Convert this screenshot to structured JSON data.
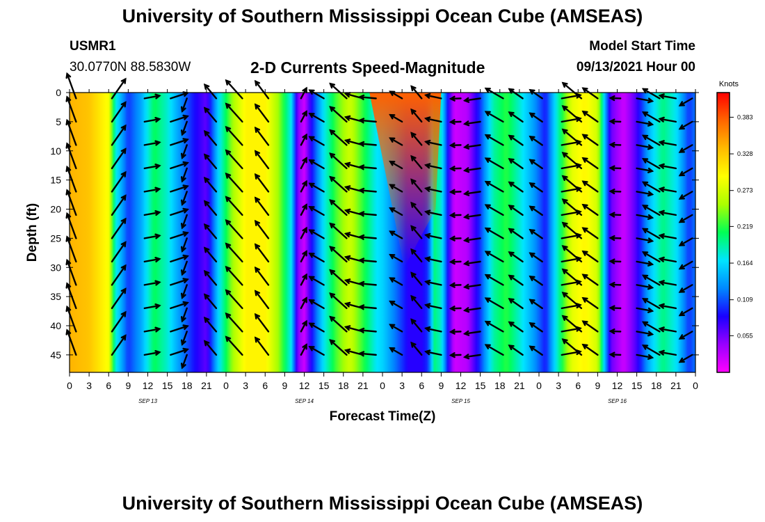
{
  "page": {
    "title_top": "University of Southern Mississippi Ocean Cube (AMSEAS)",
    "title_bottom": "University of Southern Mississippi Ocean Cube (AMSEAS)"
  },
  "header": {
    "station_id": "USMR1",
    "coordinates": "30.0770N  88.5830W",
    "subtitle": "2-D Currents Speed-Magnitude",
    "start_label": "Model Start Time",
    "start_value": "09/13/2021 Hour 00"
  },
  "chart_data": {
    "type": "heatmap",
    "title": "2-D Currents Speed-Magnitude",
    "xlabel": "Forecast Time(Z)",
    "ylabel": "Depth (ft)",
    "x_range_hours": [
      0,
      96
    ],
    "y_range_ft": [
      0,
      48
    ],
    "y_ticks": [
      0,
      5,
      10,
      15,
      20,
      25,
      30,
      35,
      40,
      45
    ],
    "x_tick_hours": [
      0,
      3,
      6,
      9,
      12,
      15,
      18,
      21,
      24,
      27,
      30,
      33,
      36,
      39,
      42,
      45,
      48,
      51,
      54,
      57,
      60,
      63,
      66,
      69,
      72,
      75,
      78,
      81,
      84,
      87,
      90,
      93,
      96
    ],
    "x_tick_labels": [
      "0",
      "3",
      "6",
      "9",
      "12",
      "15",
      "18",
      "21",
      "0",
      "3",
      "6",
      "9",
      "12",
      "15",
      "18",
      "21",
      "0",
      "3",
      "6",
      "9",
      "12",
      "15",
      "18",
      "21",
      "0",
      "3",
      "6",
      "9",
      "12",
      "15",
      "18",
      "21",
      "0"
    ],
    "date_labels": [
      {
        "hour": 12,
        "text": "SEP 13"
      },
      {
        "hour": 36,
        "text": "SEP 14"
      },
      {
        "hour": 60,
        "text": "SEP 15"
      },
      {
        "hour": 84,
        "text": "SEP 16"
      }
    ],
    "colorbar": {
      "unit": "Knots",
      "min": 0.0,
      "max": 0.42,
      "ticks": [
        0.383,
        0.328,
        0.273,
        0.219,
        0.164,
        0.109,
        0.055
      ],
      "tick_labels": [
        "0.383",
        "0.328",
        "0.273",
        "0.219",
        "0.164",
        "0.109",
        "0.055"
      ],
      "colors": [
        "#ff00ff",
        "#9900ff",
        "#1a00ff",
        "#0088ff",
        "#00e5ff",
        "#00ff55",
        "#aaff00",
        "#ffff00",
        "#ffbb00",
        "#ff6600",
        "#ff0000"
      ]
    },
    "speed_by_hour": [
      {
        "hour": 0,
        "speed": 0.34
      },
      {
        "hour": 3,
        "speed": 0.33
      },
      {
        "hour": 6,
        "speed": 0.29
      },
      {
        "hour": 7,
        "speed": 0.18
      },
      {
        "hour": 9,
        "speed": 0.1
      },
      {
        "hour": 11,
        "speed": 0.14
      },
      {
        "hour": 13,
        "speed": 0.21
      },
      {
        "hour": 15,
        "speed": 0.18
      },
      {
        "hour": 17,
        "speed": 0.13
      },
      {
        "hour": 19,
        "speed": 0.09
      },
      {
        "hour": 21,
        "speed": 0.06
      },
      {
        "hour": 23,
        "speed": 0.17
      },
      {
        "hour": 25,
        "speed": 0.25
      },
      {
        "hour": 27,
        "speed": 0.3
      },
      {
        "hour": 30,
        "speed": 0.3
      },
      {
        "hour": 32,
        "speed": 0.25
      },
      {
        "hour": 34,
        "speed": 0.17
      },
      {
        "hour": 35,
        "speed": 0.05
      },
      {
        "hour": 36,
        "speed": 0.02
      },
      {
        "hour": 37,
        "speed": 0.08
      },
      {
        "hour": 39,
        "speed": 0.17
      },
      {
        "hour": 41,
        "speed": 0.23
      },
      {
        "hour": 43,
        "speed": 0.27
      },
      {
        "hour": 45,
        "speed": 0.22
      },
      {
        "hour": 47,
        "speed": 0.17
      },
      {
        "hour": 48,
        "speed": 0.16
      },
      {
        "hour": 50,
        "speed": 0.12
      },
      {
        "hour": 52,
        "speed": 0.08
      },
      {
        "hour": 54,
        "speed": 0.08
      },
      {
        "hour": 55,
        "speed": 0.1
      },
      {
        "hour": 56,
        "speed": 0.2
      },
      {
        "hour": 57,
        "speed": 0.18
      },
      {
        "hour": 58,
        "speed": 0.09
      },
      {
        "hour": 59,
        "speed": 0.02
      },
      {
        "hour": 61,
        "speed": 0.03
      },
      {
        "hour": 63,
        "speed": 0.1
      },
      {
        "hour": 65,
        "speed": 0.19
      },
      {
        "hour": 67,
        "speed": 0.22
      },
      {
        "hour": 69,
        "speed": 0.18
      },
      {
        "hour": 71,
        "speed": 0.14
      },
      {
        "hour": 73,
        "speed": 0.09
      },
      {
        "hour": 75,
        "speed": 0.19
      },
      {
        "hour": 77,
        "speed": 0.28
      },
      {
        "hour": 79,
        "speed": 0.3
      },
      {
        "hour": 81,
        "speed": 0.27
      },
      {
        "hour": 82,
        "speed": 0.16
      },
      {
        "hour": 83,
        "speed": 0.06
      },
      {
        "hour": 85,
        "speed": 0.02
      },
      {
        "hour": 87,
        "speed": 0.07
      },
      {
        "hour": 89,
        "speed": 0.15
      },
      {
        "hour": 91,
        "speed": 0.2
      },
      {
        "hour": 93,
        "speed": 0.17
      },
      {
        "hour": 95,
        "speed": 0.1
      },
      {
        "hour": 96,
        "speed": 0.12
      }
    ],
    "surface_peak": {
      "start_hour": 46,
      "end_hour": 57,
      "surface_speed": 0.38
    },
    "vectors": {
      "columns_hours": [
        1,
        6.5,
        11.5,
        15.5,
        18,
        22.5,
        26.5,
        30.5,
        35.5,
        39,
        42.5,
        45,
        47,
        51,
        54,
        57,
        60,
        63,
        66.5,
        69.5,
        72.5,
        75.5,
        78.5,
        81,
        84.5,
        87,
        90.5,
        93,
        95.5
      ],
      "rows_ft": [
        1,
        5,
        9,
        13,
        17,
        21,
        25,
        29,
        33,
        37,
        41,
        45
      ],
      "directions_deg_by_column": [
        340,
        35,
        80,
        72,
        200,
        320,
        318,
        323,
        28,
        300,
        312,
        285,
        275,
        300,
        320,
        282,
        268,
        262,
        300,
        305,
        305,
        80,
        310,
        305,
        272,
        100,
        300,
        280,
        240
      ],
      "speeds_by_column": [
        0.34,
        0.29,
        0.13,
        0.18,
        0.1,
        0.18,
        0.3,
        0.25,
        0.06,
        0.15,
        0.26,
        0.18,
        0.15,
        0.1,
        0.14,
        0.14,
        0.03,
        0.14,
        0.22,
        0.15,
        0.12,
        0.2,
        0.3,
        0.18,
        0.03,
        0.14,
        0.2,
        0.15,
        0.11
      ]
    }
  }
}
